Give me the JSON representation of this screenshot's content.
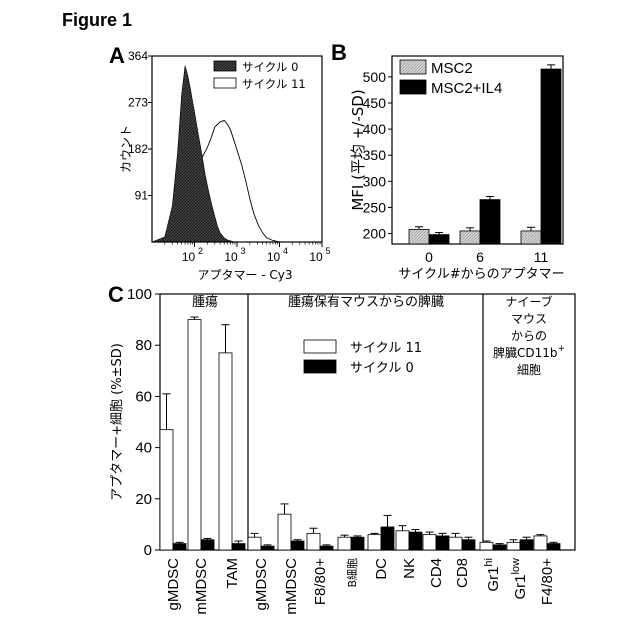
{
  "figure_title": "Figure 1",
  "chart_data": [
    {
      "panel": "A",
      "type": "histogram",
      "xlabel": "アプタマー - Cy3",
      "ylabel": "カウント",
      "x_scale": "log",
      "xlim": [
        10,
        100000
      ],
      "ylim": [
        0,
        364
      ],
      "x_ticks": [
        {
          "value": 100,
          "base": "10",
          "exp": "2"
        },
        {
          "value": 1000,
          "base": "10",
          "exp": "3"
        },
        {
          "value": 10000,
          "base": "10",
          "exp": "4"
        },
        {
          "value": 100000,
          "base": "10",
          "exp": "5"
        }
      ],
      "y_ticks": [
        {
          "value": 91,
          "label": "91"
        },
        {
          "value": 182,
          "label": "182"
        },
        {
          "value": 273,
          "label": "273"
        },
        {
          "value": 364,
          "label": "364"
        }
      ],
      "series": [
        {
          "name": "サイクル 0",
          "fill": "#3a3a3a",
          "x": [
            10,
            20,
            30,
            40,
            50,
            60,
            70,
            80,
            90,
            100,
            120,
            150,
            180,
            220,
            260,
            300,
            350,
            400,
            500,
            600,
            800,
            1000
          ],
          "y": [
            0,
            10,
            70,
            175,
            290,
            345,
            325,
            300,
            275,
            255,
            215,
            170,
            130,
            95,
            70,
            50,
            30,
            18,
            8,
            4,
            1,
            0
          ]
        },
        {
          "name": "サイクル 11",
          "fill": "#ffffff",
          "x": [
            20,
            40,
            60,
            100,
            150,
            200,
            250,
            300,
            400,
            500,
            600,
            700,
            800,
            1000,
            1300,
            1600,
            2000,
            2500,
            3200,
            4000,
            5000,
            7000,
            10000
          ],
          "y": [
            0,
            15,
            65,
            130,
            165,
            185,
            205,
            225,
            235,
            238,
            230,
            220,
            205,
            180,
            150,
            120,
            85,
            55,
            32,
            18,
            8,
            3,
            0
          ]
        }
      ]
    },
    {
      "panel": "B",
      "type": "bar",
      "xlabel": "サイクル#からのアプタマー",
      "ylabel": "MFI (平均 +/-SD)",
      "categories": [
        "0",
        "6",
        "11"
      ],
      "ylim": [
        180,
        540
      ],
      "y_ticks": [
        200,
        250,
        300,
        350,
        400,
        450,
        500
      ],
      "series": [
        {
          "name": "MSC2",
          "fill": "#c8c8c8",
          "values": [
            208,
            205,
            205
          ],
          "errors": [
            5,
            6,
            7
          ]
        },
        {
          "name": "MSC2+IL4",
          "fill": "#000000",
          "values": [
            198,
            265,
            515
          ],
          "errors": [
            4,
            6,
            8
          ]
        }
      ]
    },
    {
      "panel": "C",
      "type": "bar",
      "ylabel": "アプタマー+細胞 (%±SD)",
      "ylim": [
        0,
        100
      ],
      "y_ticks": [
        0,
        20,
        40,
        60,
        80,
        100
      ],
      "categories": [
        {
          "main": "gMDSC"
        },
        {
          "main": "mMDSC"
        },
        {
          "main": "TAM"
        },
        {
          "main": "gMDSC"
        },
        {
          "main": "mMDSC"
        },
        {
          "main": "F8/80+"
        },
        {
          "main": "B細胞"
        },
        {
          "main": "DC"
        },
        {
          "main": "NK"
        },
        {
          "main": "CD4"
        },
        {
          "main": "CD8"
        },
        {
          "main": "Gr1",
          "sup": "hi"
        },
        {
          "main": "Gr1",
          "sup": "low"
        },
        {
          "main": "F4/80+"
        }
      ],
      "groups": [
        {
          "label": [
            "腫瘍"
          ],
          "start": 0,
          "end": 2
        },
        {
          "label": [
            "腫瘍保有マウスからの脾臓"
          ],
          "start": 3,
          "end": 10
        },
        {
          "label": [
            "ナイーブ",
            "マウス",
            "からの",
            "脾臓CD11b",
            "細胞"
          ],
          "label_sup": "+",
          "start": 11,
          "end": 13
        }
      ],
      "series": [
        {
          "name": "サイクル 11",
          "fill": "#ffffff",
          "values": [
            47,
            90,
            77,
            5,
            14,
            6.5,
            5,
            6,
            7.5,
            6,
            5,
            3,
            3,
            5.5
          ],
          "errors": [
            14,
            1,
            11,
            1.5,
            4,
            2,
            0.8,
            0.5,
            2,
            1,
            1.5,
            0.5,
            1,
            0.5
          ]
        },
        {
          "name": "サイクル 0",
          "fill": "#000000",
          "values": [
            2.5,
            4,
            2.5,
            1.5,
            3.5,
            1.5,
            5,
            9,
            7,
            5.5,
            4,
            2,
            4,
            2.5
          ],
          "errors": [
            0.5,
            0.5,
            1,
            0.5,
            0.5,
            0.5,
            0.5,
            4.5,
            1,
            1,
            1,
            0.5,
            1,
            0.5
          ]
        }
      ]
    }
  ]
}
